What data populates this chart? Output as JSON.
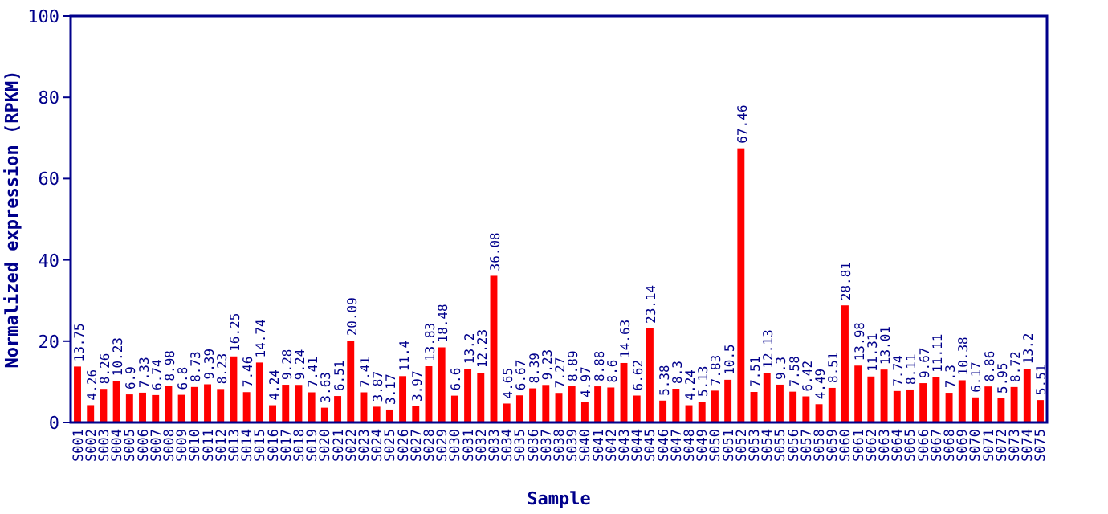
{
  "chart_data": {
    "type": "bar",
    "xlabel": "Sample",
    "ylabel": "Normalized expression (RPKM)",
    "categories": [
      "S001",
      "S002",
      "S003",
      "S004",
      "S005",
      "S006",
      "S007",
      "S008",
      "S009",
      "S010",
      "S011",
      "S012",
      "S013",
      "S014",
      "S015",
      "S016",
      "S017",
      "S018",
      "S019",
      "S020",
      "S021",
      "S022",
      "S023",
      "S024",
      "S025",
      "S026",
      "S027",
      "S028",
      "S029",
      "S030",
      "S031",
      "S032",
      "S033",
      "S034",
      "S035",
      "S036",
      "S037",
      "S038",
      "S039",
      "S040",
      "S041",
      "S042",
      "S043",
      "S044",
      "S045",
      "S046",
      "S047",
      "S048",
      "S049",
      "S050",
      "S051",
      "S052",
      "S053",
      "S054",
      "S055",
      "S056",
      "S057",
      "S058",
      "S059",
      "S060",
      "S061",
      "S062",
      "S063",
      "S064",
      "S065",
      "S066",
      "S067",
      "S068",
      "S069",
      "S070",
      "S071",
      "S072",
      "S073",
      "S074",
      "S075"
    ],
    "values": [
      13.75,
      4.26,
      8.26,
      10.23,
      6.9,
      7.33,
      6.74,
      8.98,
      6.8,
      8.73,
      9.39,
      8.23,
      16.25,
      7.46,
      14.74,
      4.24,
      9.28,
      9.24,
      7.41,
      3.63,
      6.51,
      20.09,
      7.41,
      3.87,
      3.17,
      11.4,
      3.97,
      13.83,
      18.48,
      6.6,
      13.2,
      12.23,
      36.08,
      4.65,
      6.67,
      8.39,
      9.23,
      7.27,
      8.89,
      4.97,
      8.88,
      8.6,
      14.63,
      6.62,
      23.14,
      5.38,
      8.3,
      4.24,
      5.13,
      7.83,
      10.5,
      67.46,
      7.51,
      12.13,
      9.3,
      7.58,
      6.42,
      4.49,
      8.51,
      28.81,
      13.98,
      11.31,
      13.01,
      7.74,
      8.11,
      9.67,
      11.11,
      7.3,
      10.38,
      6.17,
      8.86,
      5.95,
      8.72,
      13.2,
      5.51
    ],
    "color": "#ff0000",
    "ylim": [
      0,
      100
    ],
    "yticks": [
      0,
      20,
      40,
      60,
      80,
      100
    ],
    "data_labels": true
  }
}
